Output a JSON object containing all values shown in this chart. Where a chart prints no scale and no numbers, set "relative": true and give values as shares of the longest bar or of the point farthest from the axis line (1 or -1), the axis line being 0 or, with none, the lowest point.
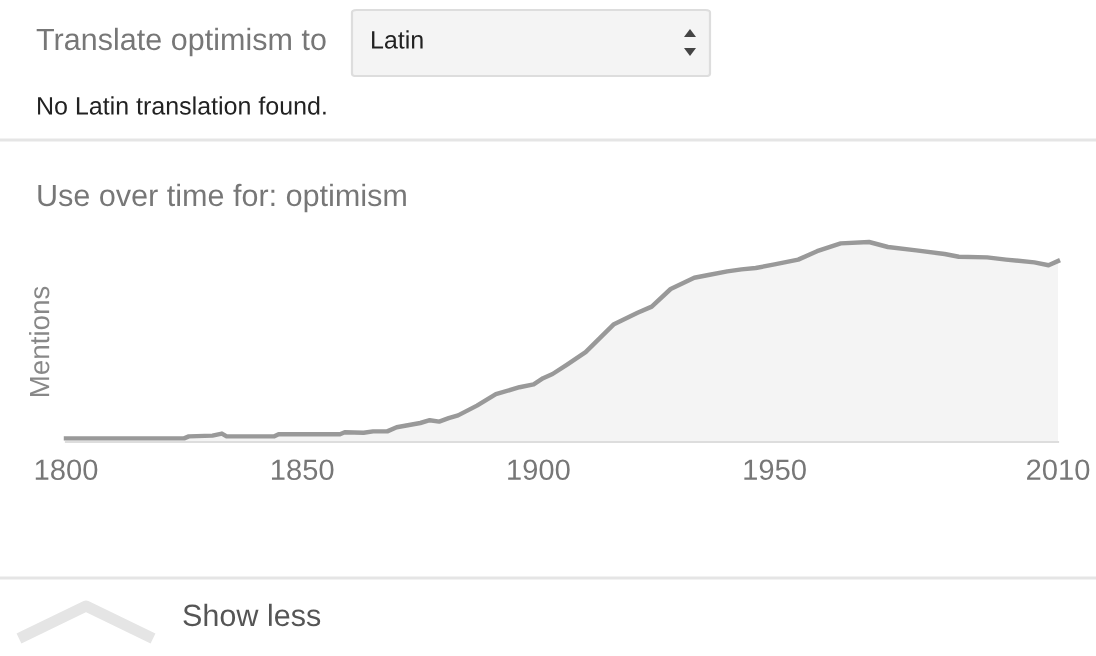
{
  "chart_data": {
    "type": "area",
    "title": "Use over time for: optimism",
    "ylabel": "Mentions",
    "relative": true,
    "annotations": [
      "Translate optimism to",
      "Latin",
      "No Latin translation found.",
      "Show less"
    ],
    "xlim": [
      1800,
      2010
    ],
    "xticks": [
      1800,
      1850,
      1900,
      1950,
      2010
    ],
    "grid": false,
    "legend": false,
    "x": [
      1800,
      1825,
      1826,
      1831,
      1833,
      1834,
      1844,
      1845,
      1858,
      1859,
      1863,
      1865,
      1868,
      1870,
      1875,
      1877,
      1879,
      1881,
      1883,
      1887,
      1891,
      1896,
      1899,
      1901,
      1903,
      1906,
      1910,
      1913,
      1916,
      1921,
      1924,
      1928,
      1933,
      1936,
      1940,
      1943,
      1946,
      1950,
      1955,
      1959,
      1964,
      1970,
      1974,
      1980,
      1986,
      1989,
      1995,
      1999,
      2005,
      2008,
      2010
    ],
    "series": [
      {
        "color": "#999999",
        "values": [
          0.018,
          0.018,
          0.028,
          0.032,
          0.042,
          0.028,
          0.028,
          0.039,
          0.039,
          0.049,
          0.046,
          0.053,
          0.053,
          0.074,
          0.095,
          0.109,
          0.102,
          0.119,
          0.133,
          0.182,
          0.239,
          0.274,
          0.288,
          0.319,
          0.34,
          0.386,
          0.449,
          0.519,
          0.589,
          0.646,
          0.677,
          0.765,
          0.821,
          0.835,
          0.853,
          0.863,
          0.87,
          0.888,
          0.912,
          0.954,
          0.993,
          1,
          0.975,
          0.958,
          0.94,
          0.926,
          0.923,
          0.912,
          0.898,
          0.884,
          0.905
        ]
      }
    ]
  }
}
